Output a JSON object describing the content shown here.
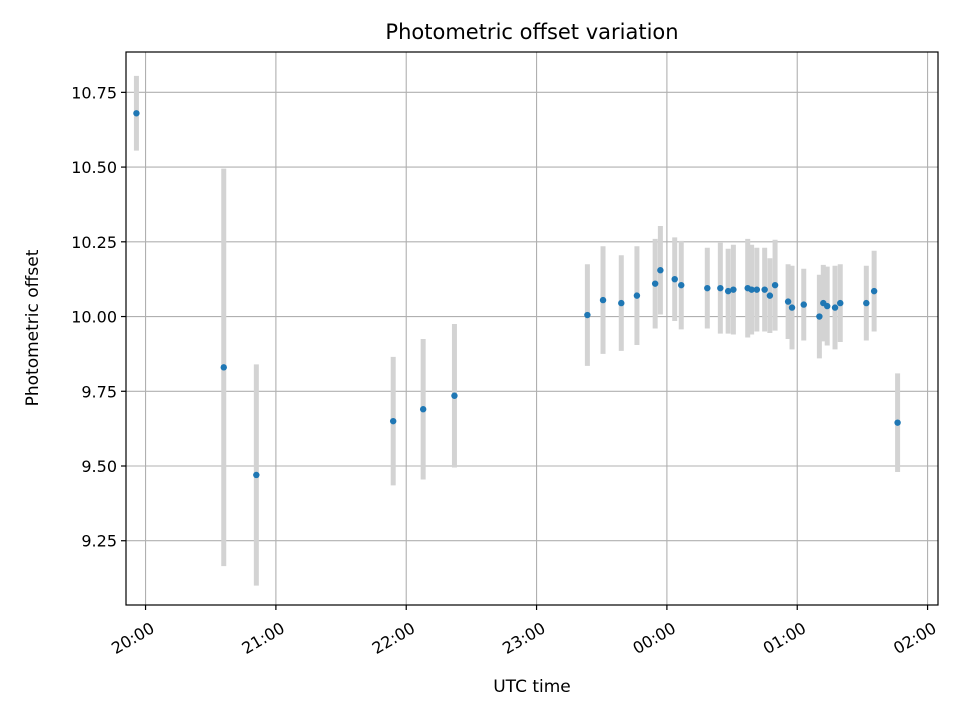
{
  "chart_data": {
    "type": "scatter",
    "title": "Photometric offset variation",
    "xlabel": "UTC time",
    "ylabel": "Photometric offset",
    "x_unit": "hours since 00:00 UTC",
    "xlim": [
      -4.15,
      2.08
    ],
    "ylim": [
      9.035,
      10.885
    ],
    "grid": true,
    "x_ticks": [
      {
        "value": -4,
        "label": "20:00"
      },
      {
        "value": -3,
        "label": "21:00"
      },
      {
        "value": -2,
        "label": "22:00"
      },
      {
        "value": -1,
        "label": "23:00"
      },
      {
        "value": 0,
        "label": "00:00"
      },
      {
        "value": 1,
        "label": "01:00"
      },
      {
        "value": 2,
        "label": "02:00"
      }
    ],
    "y_ticks": [
      {
        "value": 9.25,
        "label": "9.25"
      },
      {
        "value": 9.5,
        "label": "9.50"
      },
      {
        "value": 9.75,
        "label": "9.75"
      },
      {
        "value": 10.0,
        "label": "10.00"
      },
      {
        "value": 10.25,
        "label": "10.25"
      },
      {
        "value": 10.5,
        "label": "10.50"
      },
      {
        "value": 10.75,
        "label": "10.75"
      }
    ],
    "colors": {
      "point": "#1f77b4",
      "errorbar": "#d3d3d3"
    },
    "points": [
      {
        "x": -4.07,
        "y": 10.68,
        "err": 0.125
      },
      {
        "x": -3.4,
        "y": 9.83,
        "err": 0.665
      },
      {
        "x": -3.15,
        "y": 9.47,
        "err": 0.37
      },
      {
        "x": -2.1,
        "y": 9.65,
        "err": 0.215
      },
      {
        "x": -1.87,
        "y": 9.69,
        "err": 0.235
      },
      {
        "x": -1.63,
        "y": 9.735,
        "err": 0.24
      },
      {
        "x": -0.61,
        "y": 10.005,
        "err": 0.17
      },
      {
        "x": -0.49,
        "y": 10.055,
        "err": 0.18
      },
      {
        "x": -0.35,
        "y": 10.045,
        "err": 0.16
      },
      {
        "x": -0.23,
        "y": 10.07,
        "err": 0.165
      },
      {
        "x": -0.09,
        "y": 10.11,
        "err": 0.15
      },
      {
        "x": -0.05,
        "y": 10.155,
        "err": 0.148
      },
      {
        "x": 0.06,
        "y": 10.125,
        "err": 0.14
      },
      {
        "x": 0.11,
        "y": 10.105,
        "err": 0.148
      },
      {
        "x": 0.31,
        "y": 10.095,
        "err": 0.135
      },
      {
        "x": 0.41,
        "y": 10.095,
        "err": 0.152
      },
      {
        "x": 0.47,
        "y": 10.085,
        "err": 0.142
      },
      {
        "x": 0.51,
        "y": 10.09,
        "err": 0.15
      },
      {
        "x": 0.62,
        "y": 10.095,
        "err": 0.165
      },
      {
        "x": 0.65,
        "y": 10.09,
        "err": 0.15
      },
      {
        "x": 0.69,
        "y": 10.09,
        "err": 0.14
      },
      {
        "x": 0.75,
        "y": 10.09,
        "err": 0.14
      },
      {
        "x": 0.79,
        "y": 10.07,
        "err": 0.125
      },
      {
        "x": 0.83,
        "y": 10.105,
        "err": 0.152
      },
      {
        "x": 0.93,
        "y": 10.05,
        "err": 0.125
      },
      {
        "x": 0.96,
        "y": 10.03,
        "err": 0.14
      },
      {
        "x": 1.05,
        "y": 10.04,
        "err": 0.12
      },
      {
        "x": 1.17,
        "y": 10.0,
        "err": 0.14
      },
      {
        "x": 1.2,
        "y": 10.045,
        "err": 0.128
      },
      {
        "x": 1.23,
        "y": 10.035,
        "err": 0.132
      },
      {
        "x": 1.29,
        "y": 10.03,
        "err": 0.14
      },
      {
        "x": 1.33,
        "y": 10.045,
        "err": 0.13
      },
      {
        "x": 1.53,
        "y": 10.045,
        "err": 0.125
      },
      {
        "x": 1.59,
        "y": 10.085,
        "err": 0.135
      },
      {
        "x": 1.77,
        "y": 9.645,
        "err": 0.165
      }
    ]
  }
}
